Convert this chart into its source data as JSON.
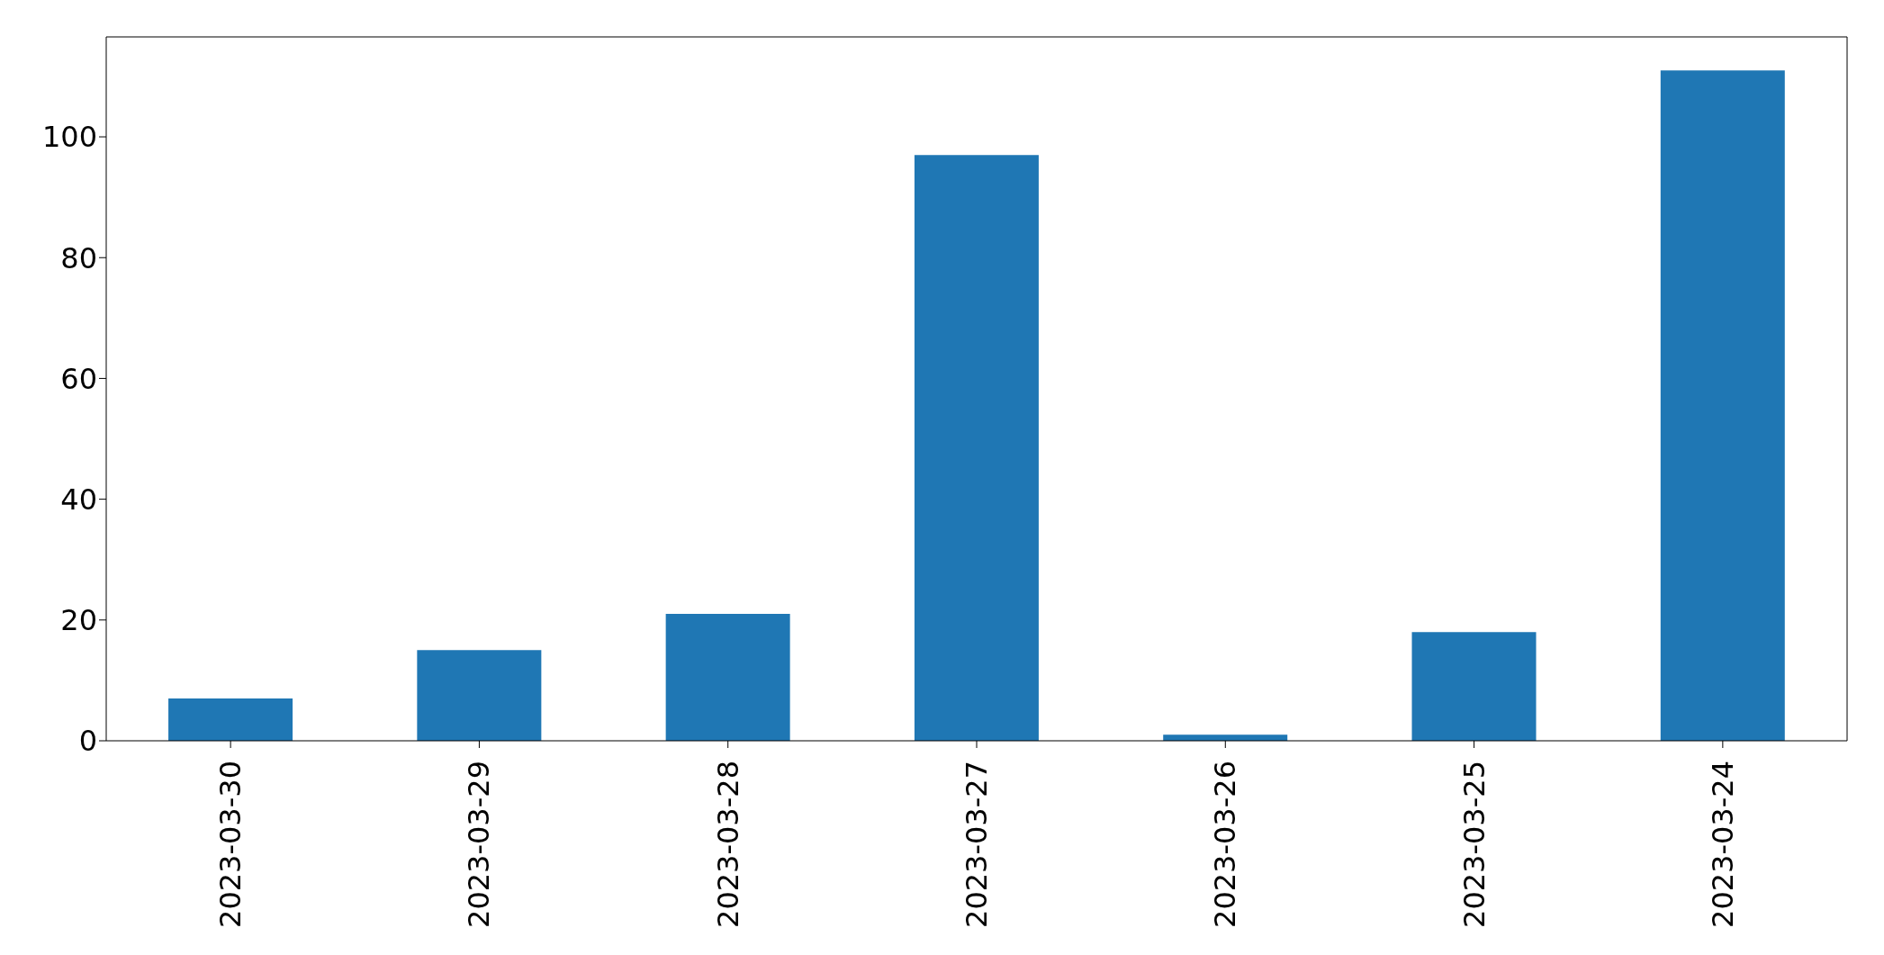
{
  "chart_data": {
    "type": "bar",
    "categories": [
      "2023-03-30",
      "2023-03-29",
      "2023-03-28",
      "2023-03-27",
      "2023-03-26",
      "2023-03-25",
      "2023-03-24"
    ],
    "values": [
      7,
      15,
      21,
      97,
      1,
      18,
      111
    ],
    "color": "#1f77b4",
    "ylim": [
      0,
      116.55
    ],
    "yticks": [
      0,
      20,
      40,
      60,
      80,
      100
    ],
    "grid": false
  }
}
